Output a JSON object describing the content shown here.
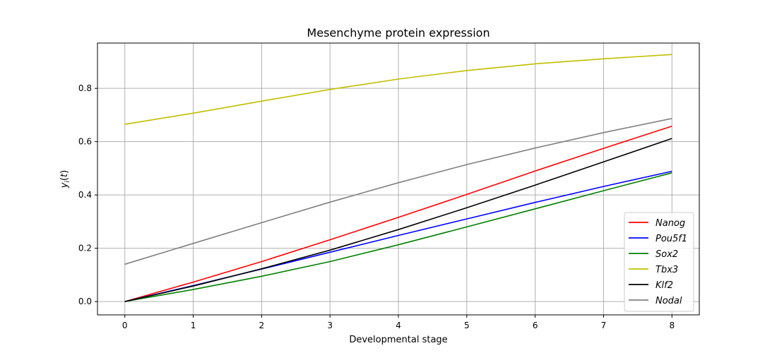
{
  "chart_data": {
    "type": "line",
    "title": "Mesenchyme protein expression",
    "xlabel": "Developmental stage",
    "ylabel": "y_i(t)",
    "xlim": [
      -0.4,
      8.4
    ],
    "ylim": [
      -0.05,
      0.97
    ],
    "xticks": [
      0,
      1,
      2,
      3,
      4,
      5,
      6,
      7,
      8
    ],
    "yticks": [
      0.0,
      0.2,
      0.4,
      0.6,
      0.8
    ],
    "ytick_labels": [
      "0.0",
      "0.2",
      "0.4",
      "0.6",
      "0.8"
    ],
    "grid": true,
    "legend_position": "lower-right",
    "x": [
      0,
      1,
      2,
      3,
      4,
      5,
      6,
      7,
      8
    ],
    "series": [
      {
        "name": "Nanog",
        "color": "#ff0000",
        "values": [
          0.0,
          0.073,
          0.15,
          0.232,
          0.316,
          0.402,
          0.49,
          0.575,
          0.658
        ]
      },
      {
        "name": "Pou5f1",
        "color": "#0000ff",
        "values": [
          0.0,
          0.06,
          0.122,
          0.185,
          0.248,
          0.31,
          0.372,
          0.432,
          0.489
        ]
      },
      {
        "name": "Sox2",
        "color": "#008000",
        "values": [
          0.0,
          0.045,
          0.095,
          0.15,
          0.213,
          0.28,
          0.348,
          0.416,
          0.483
        ]
      },
      {
        "name": "Tbx3",
        "color": "#bfbf00",
        "values": [
          0.665,
          0.707,
          0.752,
          0.796,
          0.835,
          0.867,
          0.892,
          0.911,
          0.927
        ]
      },
      {
        "name": "Klf2",
        "color": "#000000",
        "values": [
          0.0,
          0.058,
          0.123,
          0.193,
          0.27,
          0.352,
          0.437,
          0.524,
          0.612
        ]
      },
      {
        "name": "Nodal",
        "color": "#808080",
        "values": [
          0.14,
          0.218,
          0.296,
          0.373,
          0.446,
          0.514,
          0.576,
          0.634,
          0.687
        ]
      }
    ]
  }
}
